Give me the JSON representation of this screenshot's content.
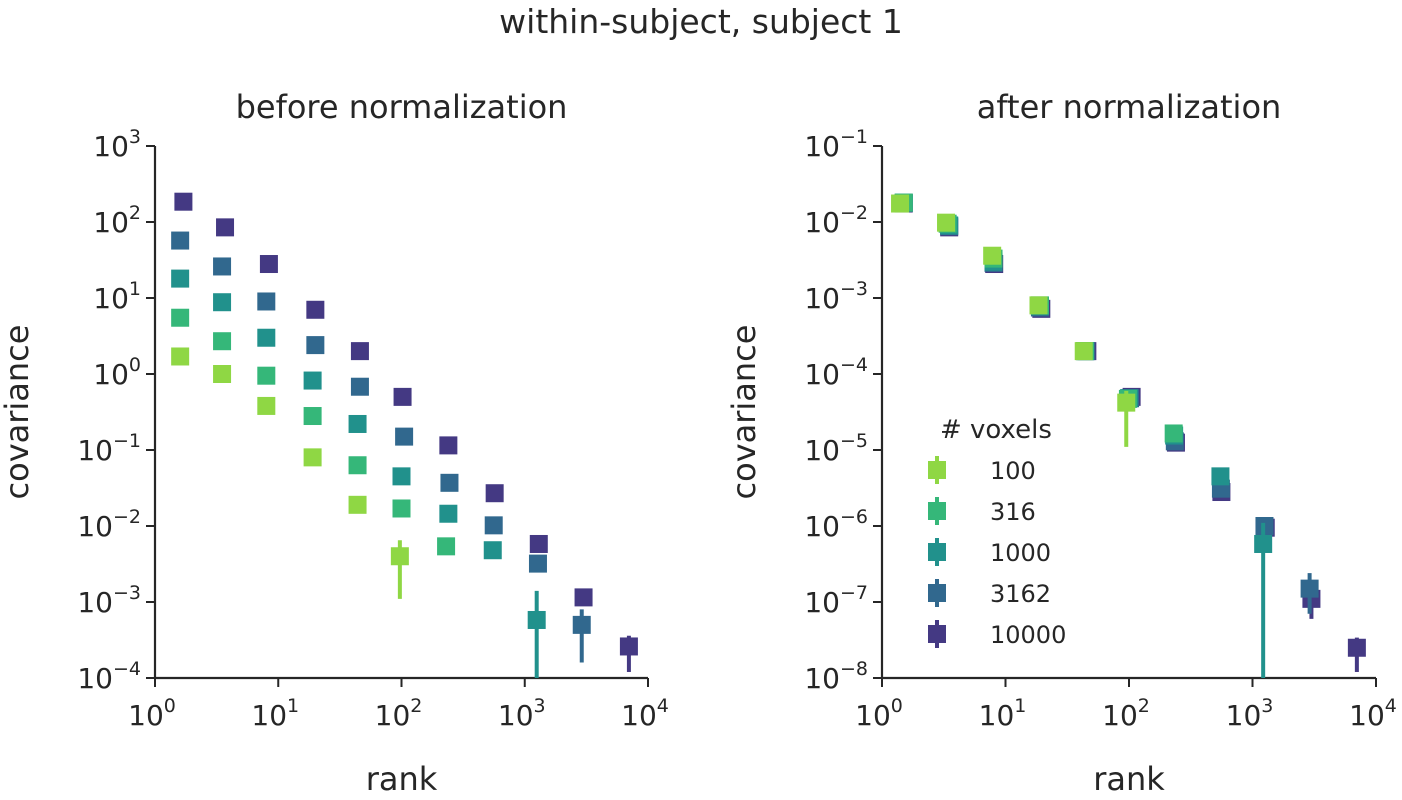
{
  "suptitle": "within-subject, subject 1",
  "colors": {
    "100": "#8fd744",
    "316": "#35b779",
    "1000": "#21918c",
    "3162": "#31688e",
    "10000": "#443983"
  },
  "chart_data": [
    {
      "type": "scatter",
      "title": "before normalization",
      "xlabel": "rank",
      "ylabel": "covariance",
      "xscale": "log",
      "yscale": "log",
      "xlim": [
        1,
        10000
      ],
      "ylim": [
        0.0001,
        1000
      ],
      "xticks": [
        {
          "base": "10",
          "exp": "0"
        },
        {
          "base": "10",
          "exp": "1"
        },
        {
          "base": "10",
          "exp": "2"
        },
        {
          "base": "10",
          "exp": "3"
        },
        {
          "base": "10",
          "exp": "4"
        }
      ],
      "yticks": [
        {
          "base": "10",
          "exp": "−4"
        },
        {
          "base": "10",
          "exp": "−3"
        },
        {
          "base": "10",
          "exp": "−2"
        },
        {
          "base": "10",
          "exp": "−1"
        },
        {
          "base": "10",
          "exp": "0"
        },
        {
          "base": "10",
          "exp": "1"
        },
        {
          "base": "10",
          "exp": "2"
        },
        {
          "base": "10",
          "exp": "3"
        }
      ],
      "series": [
        {
          "name": "100",
          "points": [
            {
              "x": 1.6,
              "y": 1.7
            },
            {
              "x": 3.5,
              "y": 1.0
            },
            {
              "x": 8.0,
              "y": 0.38
            },
            {
              "x": 19,
              "y": 0.08
            },
            {
              "x": 44,
              "y": 0.019
            },
            {
              "x": 97,
              "y": 0.004,
              "ylo": 0.0011,
              "yhi": 0.0065
            }
          ]
        },
        {
          "name": "316",
          "points": [
            {
              "x": 1.6,
              "y": 5.5
            },
            {
              "x": 3.5,
              "y": 2.7
            },
            {
              "x": 8.0,
              "y": 0.95
            },
            {
              "x": 19,
              "y": 0.28
            },
            {
              "x": 44,
              "y": 0.063
            },
            {
              "x": 100,
              "y": 0.017
            },
            {
              "x": 230,
              "y": 0.0054
            }
          ]
        },
        {
          "name": "1000",
          "points": [
            {
              "x": 1.6,
              "y": 18
            },
            {
              "x": 3.5,
              "y": 8.8
            },
            {
              "x": 8.0,
              "y": 3.0
            },
            {
              "x": 19,
              "y": 0.82
            },
            {
              "x": 44,
              "y": 0.22
            },
            {
              "x": 100,
              "y": 0.045
            },
            {
              "x": 240,
              "y": 0.0145
            },
            {
              "x": 550,
              "y": 0.0048
            },
            {
              "x": 1250,
              "y": 0.00058,
              "ylo": 0.0001,
              "yhi": 0.0014
            }
          ]
        },
        {
          "name": "3162",
          "points": [
            {
              "x": 1.6,
              "y": 57
            },
            {
              "x": 3.5,
              "y": 26
            },
            {
              "x": 8.0,
              "y": 9.0
            },
            {
              "x": 20,
              "y": 2.4
            },
            {
              "x": 46,
              "y": 0.68
            },
            {
              "x": 105,
              "y": 0.15
            },
            {
              "x": 245,
              "y": 0.037
            },
            {
              "x": 560,
              "y": 0.0102
            },
            {
              "x": 1280,
              "y": 0.0032
            },
            {
              "x": 2900,
              "y": 0.0005,
              "ylo": 0.00016,
              "yhi": 0.0008
            }
          ]
        },
        {
          "name": "10000",
          "points": [
            {
              "x": 1.7,
              "y": 185
            },
            {
              "x": 3.7,
              "y": 85
            },
            {
              "x": 8.4,
              "y": 28
            },
            {
              "x": 20,
              "y": 7.0
            },
            {
              "x": 46,
              "y": 2.0
            },
            {
              "x": 102,
              "y": 0.5
            },
            {
              "x": 240,
              "y": 0.115
            },
            {
              "x": 570,
              "y": 0.027
            },
            {
              "x": 1300,
              "y": 0.0058
            },
            {
              "x": 3000,
              "y": 0.00115
            },
            {
              "x": 7000,
              "y": 0.00026,
              "ylo": 0.00012,
              "yhi": 0.00036
            }
          ]
        }
      ]
    },
    {
      "type": "scatter",
      "title": "after normalization",
      "xlabel": "rank",
      "ylabel": "covariance",
      "xscale": "log",
      "yscale": "log",
      "xlim": [
        1,
        10000
      ],
      "ylim": [
        1e-08,
        0.1
      ],
      "xticks": [
        {
          "base": "10",
          "exp": "0"
        },
        {
          "base": "10",
          "exp": "1"
        },
        {
          "base": "10",
          "exp": "2"
        },
        {
          "base": "10",
          "exp": "3"
        },
        {
          "base": "10",
          "exp": "4"
        }
      ],
      "yticks": [
        {
          "base": "10",
          "exp": "−8"
        },
        {
          "base": "10",
          "exp": "−7"
        },
        {
          "base": "10",
          "exp": "−6"
        },
        {
          "base": "10",
          "exp": "−5"
        },
        {
          "base": "10",
          "exp": "−4"
        },
        {
          "base": "10",
          "exp": "−3"
        },
        {
          "base": "10",
          "exp": "−2"
        },
        {
          "base": "10",
          "exp": "−1"
        }
      ],
      "legend": {
        "title": "# voxels",
        "location": "lower-left"
      },
      "series": [
        {
          "name": "10000",
          "points": [
            {
              "x": 1.5,
              "y": 0.0175
            },
            {
              "x": 3.5,
              "y": 0.0085
            },
            {
              "x": 8.1,
              "y": 0.0028
            },
            {
              "x": 19.5,
              "y": 0.00072
            },
            {
              "x": 46,
              "y": 0.0002
            },
            {
              "x": 105,
              "y": 5e-05
            },
            {
              "x": 240,
              "y": 1.25e-05
            },
            {
              "x": 560,
              "y": 2.8e-06
            },
            {
              "x": 1280,
              "y": 9.5e-07
            },
            {
              "x": 3000,
              "y": 1.1e-07,
              "ylo": 6e-08,
              "yhi": 1.6e-07
            },
            {
              "x": 7000,
              "y": 2.5e-08,
              "ylo": 1.2e-08,
              "yhi": 3.4e-08
            }
          ]
        },
        {
          "name": "3162",
          "points": [
            {
              "x": 1.5,
              "y": 0.0178
            },
            {
              "x": 3.5,
              "y": 0.0088
            },
            {
              "x": 8.0,
              "y": 0.0029
            },
            {
              "x": 19,
              "y": 0.00075
            },
            {
              "x": 45,
              "y": 0.0002
            },
            {
              "x": 102,
              "y": 4.8e-05
            },
            {
              "x": 235,
              "y": 1.3e-05
            },
            {
              "x": 555,
              "y": 3.1e-06
            },
            {
              "x": 1250,
              "y": 1e-06
            },
            {
              "x": 2900,
              "y": 1.5e-07,
              "ylo": 7e-08,
              "yhi": 2.4e-07
            }
          ]
        },
        {
          "name": "1000",
          "points": [
            {
              "x": 1.5,
              "y": 0.018
            },
            {
              "x": 3.5,
              "y": 0.009
            },
            {
              "x": 8.0,
              "y": 0.003
            },
            {
              "x": 19,
              "y": 0.00078
            },
            {
              "x": 44,
              "y": 0.0002
            },
            {
              "x": 100,
              "y": 4.8e-05
            },
            {
              "x": 232,
              "y": 1.55e-05
            },
            {
              "x": 550,
              "y": 4.5e-06
            },
            {
              "x": 1220,
              "y": 5.8e-07,
              "ylo": 1e-08,
              "yhi": 1.1e-06
            }
          ]
        },
        {
          "name": "316",
          "points": [
            {
              "x": 1.5,
              "y": 0.018
            },
            {
              "x": 3.4,
              "y": 0.0095
            },
            {
              "x": 8.0,
              "y": 0.0033
            },
            {
              "x": 19,
              "y": 0.0008
            },
            {
              "x": 44,
              "y": 0.0002
            },
            {
              "x": 98,
              "y": 4.7e-05
            },
            {
              "x": 230,
              "y": 1.65e-05
            }
          ]
        },
        {
          "name": "100",
          "points": [
            {
              "x": 1.4,
              "y": 0.0175
            },
            {
              "x": 3.3,
              "y": 0.0098
            },
            {
              "x": 7.8,
              "y": 0.0036
            },
            {
              "x": 18.5,
              "y": 0.0008
            },
            {
              "x": 43,
              "y": 0.0002
            },
            {
              "x": 95,
              "y": 4.2e-05,
              "ylo": 1.1e-05,
              "yhi": 6e-05
            }
          ]
        }
      ]
    }
  ]
}
